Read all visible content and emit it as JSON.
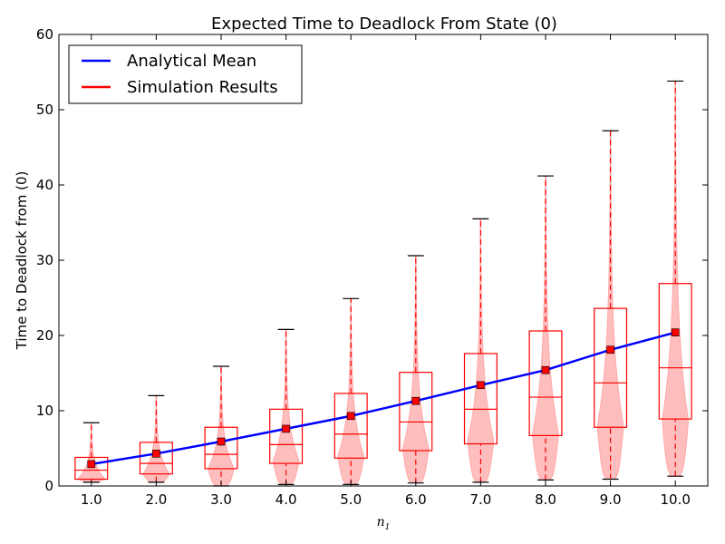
{
  "chart_data": {
    "type": "violin",
    "title": "Expected Time to Deadlock From State (0)",
    "xlabel": "n",
    "xlabel_subscript": "1",
    "ylabel": "Time to Deadlock from (0)",
    "ylim": [
      0,
      60
    ],
    "xlim": [
      0.5,
      10.5
    ],
    "yticks": [
      0,
      10,
      20,
      30,
      40,
      50,
      60
    ],
    "categories": [
      "1.0",
      "2.0",
      "3.0",
      "4.0",
      "5.0",
      "6.0",
      "7.0",
      "8.0",
      "9.0",
      "10.0"
    ],
    "x": [
      1,
      2,
      3,
      4,
      5,
      6,
      7,
      8,
      9,
      10
    ],
    "legend": {
      "placement": "top-left",
      "entries": [
        "Analytical Mean",
        "Simulation Results"
      ]
    },
    "series": [
      {
        "name": "Analytical Mean",
        "type": "line",
        "color": "#0000ff",
        "values": [
          2.9,
          4.3,
          5.9,
          7.6,
          9.3,
          11.3,
          13.4,
          15.4,
          18.1,
          20.4
        ]
      },
      {
        "name": "Simulation Results",
        "type": "violin+box",
        "color": "#ff0000",
        "fill": "#ff9999",
        "min": [
          0.5,
          0.5,
          0.0,
          0.2,
          0.2,
          0.4,
          0.5,
          0.8,
          0.9,
          1.3
        ],
        "q1": [
          0.9,
          1.6,
          2.3,
          3.0,
          3.7,
          4.7,
          5.6,
          6.7,
          7.8,
          8.9
        ],
        "median": [
          2.1,
          3.0,
          4.2,
          5.5,
          6.9,
          8.5,
          10.2,
          11.8,
          13.7,
          15.7
        ],
        "q3": [
          3.8,
          5.8,
          7.8,
          10.2,
          12.3,
          15.1,
          17.6,
          20.6,
          23.6,
          26.9
        ],
        "max": [
          8.4,
          12.0,
          15.9,
          20.8,
          24.9,
          30.6,
          35.5,
          41.2,
          47.2,
          53.8
        ],
        "mean": [
          2.9,
          4.3,
          5.9,
          7.6,
          9.3,
          11.3,
          13.4,
          15.4,
          18.1,
          20.4
        ],
        "mode": [
          1.0,
          1.6,
          2.3,
          3.3,
          3.9,
          4.9,
          6.0,
          6.9,
          7.9,
          8.6
        ]
      }
    ]
  }
}
